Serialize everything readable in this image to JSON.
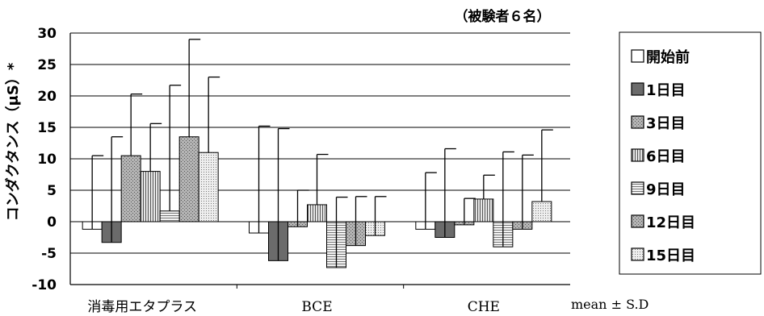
{
  "chart_data": {
    "type": "bar",
    "note": "（被験者６名）",
    "ylabel": "コンダクタンス（μS）*",
    "footnote": "mean ± S.D",
    "ylim": [
      -10,
      30
    ],
    "yticks": [
      -10,
      -5,
      0,
      5,
      10,
      15,
      20,
      25,
      30
    ],
    "ytick_labels": [
      "-10",
      "-5",
      "0",
      "5",
      "10",
      "15",
      "20",
      "25",
      "30"
    ],
    "grid": true,
    "legend_position": "right",
    "categories": [
      "消毒用エタプラス",
      "BCE",
      "CHE"
    ],
    "series": [
      {
        "name": "開始前",
        "fill": "#ffffff",
        "pattern": "none",
        "values": [
          -1.2,
          -1.8,
          -1.2
        ],
        "sd": [
          11.7,
          17.0,
          9.0
        ]
      },
      {
        "name": "1日目",
        "fill": "#6b6b6b",
        "pattern": "none",
        "values": [
          -3.3,
          -6.2,
          -2.5
        ],
        "sd": [
          16.8,
          21.0,
          14.1
        ]
      },
      {
        "name": "3日目",
        "fill": "#b4b4b4",
        "pattern": "dots",
        "values": [
          10.5,
          -0.8,
          -0.5
        ],
        "sd": [
          9.8,
          5.8,
          4.2
        ]
      },
      {
        "name": "6日目",
        "fill": "#d0d0d0",
        "pattern": "vlines",
        "values": [
          8.0,
          2.7,
          3.6
        ],
        "sd": [
          7.6,
          8.0,
          3.8
        ]
      },
      {
        "name": "9日目",
        "fill": "#eeeeee",
        "pattern": "hlines",
        "values": [
          1.7,
          -7.3,
          -4.0
        ],
        "sd": [
          20.0,
          11.2,
          15.1
        ]
      },
      {
        "name": "12日目",
        "fill": "#a8a8a8",
        "pattern": "dots",
        "values": [
          13.5,
          -3.8,
          -1.2
        ],
        "sd": [
          15.5,
          7.8,
          11.8
        ]
      },
      {
        "name": "15日目",
        "fill": "#e4e4e4",
        "pattern": "dense",
        "values": [
          11.0,
          -2.2,
          3.2
        ],
        "sd": [
          12.0,
          6.2,
          11.4
        ]
      }
    ]
  }
}
